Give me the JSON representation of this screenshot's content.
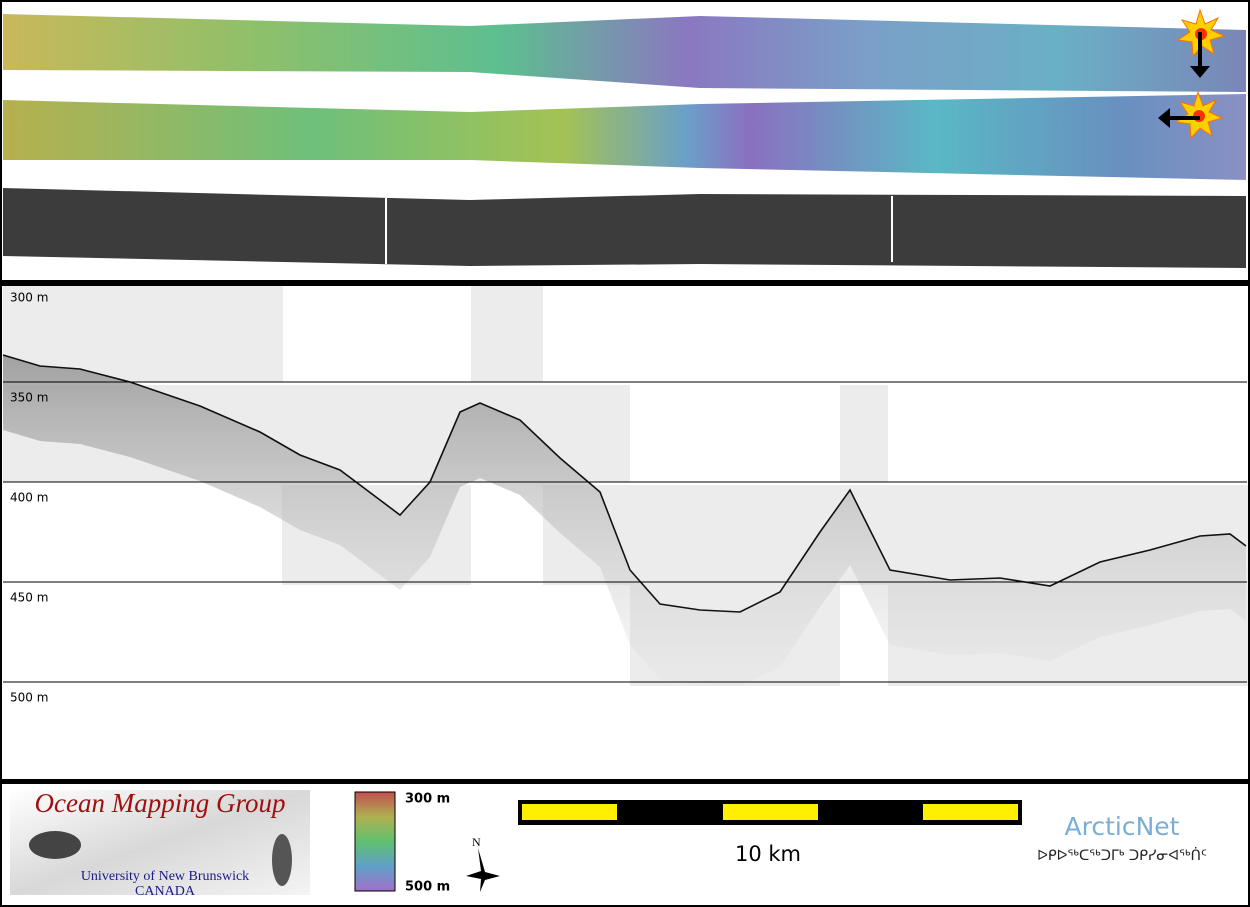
{
  "profile": {
    "depth_labels": [
      "300 m",
      "350 m",
      "400 m",
      "450 m",
      "500 m"
    ]
  },
  "footer": {
    "logo": {
      "title": "Ocean Mapping Group",
      "university": "University of New Brunswick",
      "country": "CANADA"
    },
    "colorbar": {
      "top_label": "300 m",
      "bottom_label": "500 m"
    },
    "north_label": "N",
    "scale_bar_label": "10 km",
    "partner": {
      "name": "ArcticNet",
      "subtitle": "ᐅᑭᐅᖅᑕᖅᑐᒥᒃ ᑐᑭᓯᓂᐊᖅᑏᑦ"
    }
  }
}
